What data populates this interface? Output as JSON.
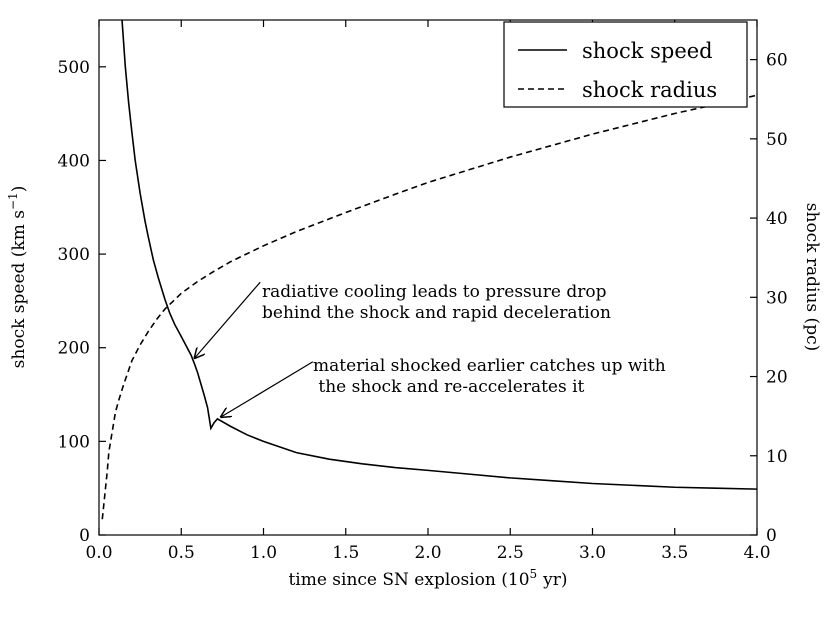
{
  "chart_data": {
    "type": "line",
    "title": "",
    "xlabel": "time since SN explosion",
    "xlabel_unit_prefix": "(10",
    "xlabel_unit_exp": "5",
    "xlabel_unit_suffix": "yr)",
    "ylabel": "shock speed (km s",
    "ylabel_exp": "−1",
    "ylabel_close": ")",
    "y2label": "shock radius (pc)",
    "xlim": [
      0.0,
      4.0
    ],
    "ylim": [
      0,
      550
    ],
    "y2lim": [
      0,
      65
    ],
    "grid": false,
    "legend_position": "top-right",
    "x_ticks": [
      "0.0",
      "0.5",
      "1.0",
      "1.5",
      "2.0",
      "2.5",
      "3.0",
      "3.5",
      "4.0"
    ],
    "y_ticks": [
      "0",
      "100",
      "200",
      "300",
      "400",
      "500"
    ],
    "y2_ticks": [
      "0",
      "10",
      "20",
      "30",
      "40",
      "50",
      "60"
    ],
    "series": [
      {
        "name": "shock speed",
        "axis": "left",
        "style": "solid",
        "x": [
          0.14,
          0.16,
          0.18,
          0.2,
          0.22,
          0.25,
          0.28,
          0.3,
          0.33,
          0.36,
          0.4,
          0.43,
          0.46,
          0.5,
          0.53,
          0.56,
          0.58,
          0.6,
          0.62,
          0.64,
          0.66,
          0.68,
          0.7,
          0.72,
          0.75,
          0.8,
          0.9,
          1.0,
          1.2,
          1.4,
          1.6,
          1.8,
          2.0,
          2.25,
          2.5,
          2.75,
          3.0,
          3.25,
          3.5,
          3.75,
          4.0
        ],
        "values": [
          550,
          500,
          462,
          430,
          400,
          365,
          335,
          318,
          294,
          275,
          252,
          237,
          225,
          212,
          202,
          192,
          183,
          173,
          161,
          149,
          136,
          114,
          120,
          124,
          121,
          116,
          107,
          100,
          88,
          81,
          76,
          72,
          69,
          65,
          61,
          58,
          55,
          53,
          51,
          50,
          49
        ]
      },
      {
        "name": "shock radius",
        "axis": "right",
        "style": "dashed",
        "x": [
          0.02,
          0.03,
          0.04,
          0.05,
          0.06,
          0.08,
          0.1,
          0.12,
          0.15,
          0.18,
          0.2,
          0.25,
          0.3,
          0.35,
          0.4,
          0.45,
          0.5,
          0.6,
          0.7,
          0.8,
          1.0,
          1.2,
          1.5,
          1.8,
          2.0,
          2.5,
          3.0,
          3.5,
          4.0
        ],
        "values": [
          2.0,
          4.0,
          6.0,
          8.0,
          10.5,
          13.0,
          15.5,
          17.0,
          19.0,
          20.8,
          22.0,
          24.0,
          25.7,
          27.2,
          28.5,
          29.5,
          30.5,
          32.0,
          33.3,
          34.5,
          36.5,
          38.3,
          40.7,
          43.0,
          44.5,
          47.7,
          50.6,
          53.2,
          55.5
        ]
      }
    ],
    "annotations": [
      {
        "id": "cooling",
        "lines": [
          "radiative cooling leads to pressure drop",
          "behind the shock and rapid deceleration"
        ],
        "target": {
          "x": 0.57,
          "y": 187
        },
        "text_anchor": {
          "x": 0.98,
          "y": 270
        }
      },
      {
        "id": "reaccel",
        "lines": [
          "material shocked earlier catches up with",
          " the shock and re-accelerates it"
        ],
        "target": {
          "x": 0.73,
          "y": 124
        },
        "text_anchor": {
          "x": 1.3,
          "y": 185
        }
      }
    ],
    "legend": [
      {
        "label": "shock speed",
        "style": "solid"
      },
      {
        "label": "shock radius",
        "style": "dashed"
      }
    ]
  }
}
